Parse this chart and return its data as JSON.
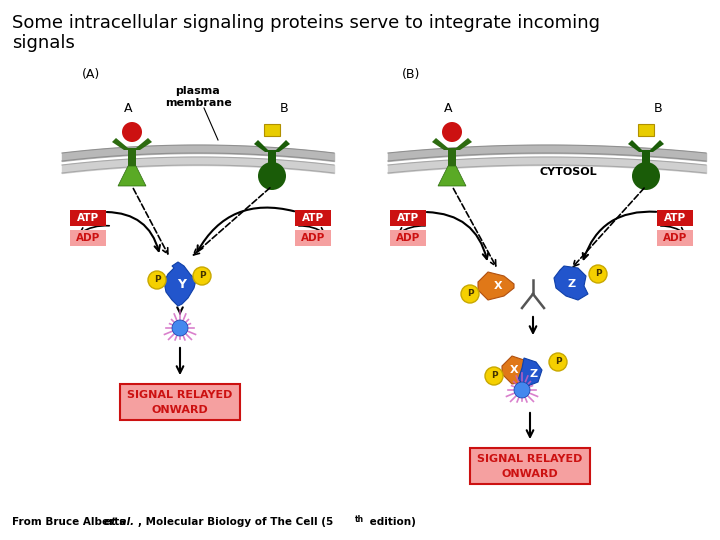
{
  "title_line1": "Some intracellular signaling proteins serve to integrate incoming",
  "title_line2": "signals",
  "title_fontsize": 13,
  "background_color": "#ffffff",
  "label_A": "(A)",
  "label_B": "(B)",
  "plasma_membrane_label": "plasma\nmembrane",
  "cytosol_label": "CYTOSOL",
  "atp_color": "#cc1111",
  "adp_color": "#f5a0a0",
  "signal_box_color": "#f5a0a0",
  "signal_text_color": "#cc1111",
  "receptor_green_dark": "#2d6b10",
  "receptor_green_light": "#5aaa25",
  "receptor_green_stem": "#2a5c0e",
  "receptor_B_dark": "#1a5c08",
  "ligand_red": "#cc1111",
  "ligand_yellow": "#e8cc00",
  "kinase_blue": "#2255cc",
  "scaffold_orange": "#e07818",
  "phospho_yellow": "#f5d000",
  "phospho_outline": "#c8a800",
  "arrow_color": "#111111",
  "glow_pink": "#d060c0",
  "glow_blue": "#4488ee",
  "Y_label": "Y",
  "X_label": "X",
  "Z_label": "Z",
  "P_label": "P"
}
